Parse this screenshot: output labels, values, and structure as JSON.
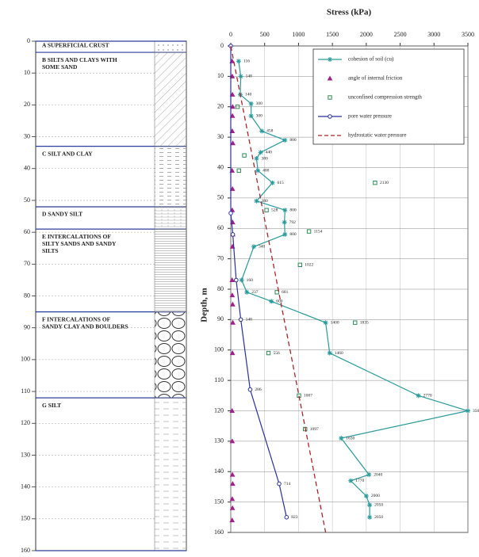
{
  "chart_data": [
    {
      "type": "strata",
      "ylim": [
        0,
        160
      ],
      "yticks": [
        0,
        10,
        20,
        30,
        40,
        50,
        60,
        70,
        80,
        90,
        100,
        110,
        120,
        130,
        140,
        150,
        160
      ],
      "layers": [
        {
          "label_lines": [
            "A  SUPERFICIAL CRUST"
          ],
          "top": 0,
          "bottom": 3.5
        },
        {
          "label_lines": [
            "B  SILTS AND CLAYS WITH",
            "SOME SAND"
          ],
          "top": 3.5,
          "bottom": 33
        },
        {
          "label_lines": [
            "C  SILT AND CLAY"
          ],
          "top": 33,
          "bottom": 52
        },
        {
          "label_lines": [
            "D  SANDY SILT"
          ],
          "top": 52,
          "bottom": 59
        },
        {
          "label_lines": [
            "E  INTERCALATIONS OF",
            "SILTY SANDS AND SANDY",
            "SILTS"
          ],
          "top": 59,
          "bottom": 85
        },
        {
          "label_lines": [
            "F  INTERCALATIONS OF",
            "SANDY CLAY AND BOULDERS"
          ],
          "top": 85,
          "bottom": 112
        },
        {
          "label_lines": [
            "G  SILT"
          ],
          "top": 112,
          "bottom": 160
        }
      ]
    },
    {
      "type": "line",
      "xlabel": "Stress (kPa)",
      "ylabel": "Depth, m",
      "xlim": [
        0,
        3500
      ],
      "xticks": [
        0,
        500,
        1000,
        1500,
        2000,
        2500,
        3000,
        3500
      ],
      "ylim": [
        0,
        160
      ],
      "yticks": [
        0,
        10,
        20,
        30,
        40,
        50,
        60,
        70,
        80,
        90,
        100,
        110,
        120,
        130,
        140,
        150,
        160
      ],
      "y_reversed": true,
      "grid": true,
      "legend": "upper right",
      "series": [
        {
          "name": "cohesion of soil (cu)",
          "color": "#2a9a9a",
          "marker": "star",
          "line": "solid",
          "y": [
            5,
            10,
            16,
            19,
            23,
            28,
            31,
            35,
            37,
            41,
            45,
            51,
            54,
            58,
            62,
            66,
            77,
            81,
            84,
            91,
            101,
            115,
            120,
            129,
            141,
            143,
            148,
            151,
            155
          ],
          "x": [
            116,
            148,
            140,
            300,
            300,
            458,
            800,
            440,
            380,
            400,
            615,
            380,
            800,
            792,
            800,
            340,
            160,
            237,
            600,
            1400,
            1460,
            2770,
            3500,
            1630,
            2040,
            1770,
            2000,
            2050,
            2050
          ],
          "value_labels": [
            "116",
            "148",
            "140",
            "300",
            "300",
            "458",
            "800",
            "440",
            "380",
            "400",
            "615",
            "380",
            "800",
            "792",
            "800",
            "340",
            "160",
            "237",
            "600",
            "1400",
            "1460",
            "2770",
            "3500",
            "1630",
            "2040",
            "1770",
            "2000",
            "2050",
            "2050"
          ]
        },
        {
          "name": "angle of internal friction",
          "color": "#a0208a",
          "marker": "triangle",
          "line": "none",
          "y": [
            5,
            10,
            16,
            20,
            23,
            28,
            32,
            41,
            47,
            54,
            58,
            62,
            66,
            77,
            82,
            85,
            91,
            101,
            120,
            130,
            141,
            144,
            149,
            152,
            156
          ],
          "x": [
            20,
            22,
            25,
            28,
            25,
            22,
            30,
            20,
            25,
            22,
            28,
            30,
            25,
            20,
            22,
            28,
            30,
            25,
            20,
            22,
            25,
            28,
            22,
            25,
            20
          ]
        },
        {
          "name": "unconfined compression strength",
          "color": "#2e8b57",
          "marker": "square",
          "line": "none",
          "y": [
            20,
            36,
            41,
            45,
            54,
            61,
            72,
            81,
            91,
            101,
            115,
            126
          ],
          "x": [
            100,
            200,
            120,
            2130,
            528,
            1154,
            1022,
            681,
            1835,
            556,
            1007,
            1097
          ],
          "value_labels": [
            null,
            null,
            null,
            "2130",
            "528",
            "1154",
            "1022",
            "681",
            "1835",
            "556",
            "1007",
            "1097"
          ]
        },
        {
          "name": "pore water pressure",
          "color": "#2b2f9c",
          "marker": "circle",
          "line": "solid",
          "y": [
            0,
            55,
            62,
            77,
            90,
            113,
            144,
            155
          ],
          "x": [
            0,
            0,
            30,
            80,
            148,
            286,
            714,
            823
          ],
          "value_labels": [
            null,
            null,
            null,
            null,
            "148",
            "286",
            "714",
            "823"
          ]
        },
        {
          "name": "hydrostatic water pressure",
          "color": "#a8262c",
          "marker": "none",
          "line": "dashed",
          "y": [
            0,
            160
          ],
          "x": [
            0,
            1400
          ]
        }
      ]
    }
  ]
}
